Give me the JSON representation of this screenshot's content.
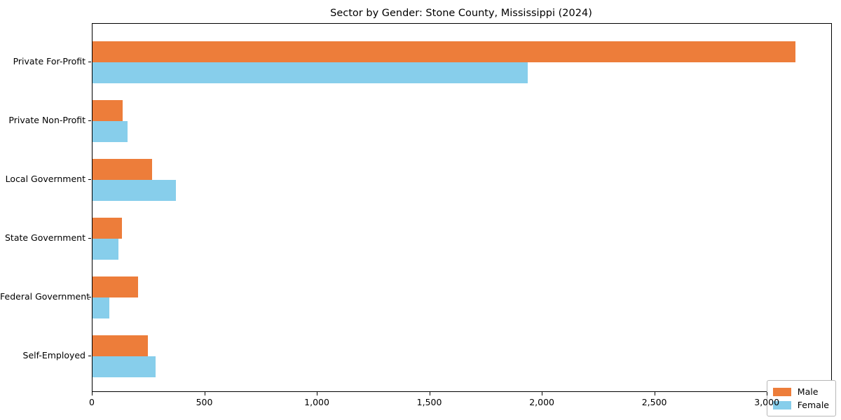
{
  "chart_data": {
    "type": "bar",
    "orientation": "horizontal",
    "title": "Sector by Gender: Stone County, Mississippi (2024)",
    "categories": [
      "Private For-Profit",
      "Private Non-Profit",
      "Local Government",
      "State Government",
      "Federal Government",
      "Self-Employed"
    ],
    "series": [
      {
        "name": "Male",
        "color": "#ed7d3a",
        "values": [
          3124,
          134,
          265,
          130,
          202,
          246
        ]
      },
      {
        "name": "Female",
        "color": "#87ceeb",
        "values": [
          1933,
          156,
          370,
          114,
          75,
          279
        ]
      }
    ],
    "xlabel": "",
    "ylabel": "",
    "xlim": [
      0,
      3283
    ],
    "xticks": [
      {
        "value": 0,
        "label": "0"
      },
      {
        "value": 500,
        "label": "500"
      },
      {
        "value": 1000,
        "label": "1,000"
      },
      {
        "value": 1500,
        "label": "1,500"
      },
      {
        "value": 2000,
        "label": "2,000"
      },
      {
        "value": 2500,
        "label": "2,500"
      },
      {
        "value": 3000,
        "label": "3,000"
      }
    ],
    "grid": false,
    "legend": {
      "position": "lower right",
      "entries": [
        "Male",
        "Female"
      ]
    },
    "axis_color": "#000000",
    "background_color": "#ffffff"
  }
}
